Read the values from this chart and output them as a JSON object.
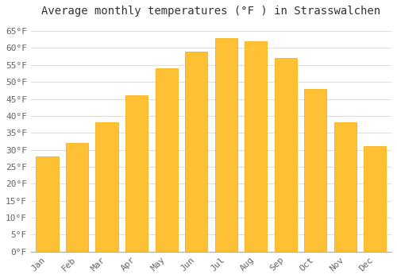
{
  "title": "Average monthly temperatures (°F ) in Strasswalchen",
  "months": [
    "Jan",
    "Feb",
    "Mar",
    "Apr",
    "May",
    "Jun",
    "Jul",
    "Aug",
    "Sep",
    "Oct",
    "Nov",
    "Dec"
  ],
  "values": [
    28.0,
    32.0,
    38.0,
    46.0,
    54.0,
    59.0,
    63.0,
    62.0,
    57.0,
    48.0,
    38.0,
    31.0
  ],
  "bar_color_face": "#FFC033",
  "bar_color_edge": "#F5A800",
  "background_color": "#FFFFFF",
  "grid_color": "#DDDDDD",
  "ylim": [
    0,
    68
  ],
  "yticks": [
    0,
    5,
    10,
    15,
    20,
    25,
    30,
    35,
    40,
    45,
    50,
    55,
    60,
    65
  ],
  "title_fontsize": 10,
  "tick_fontsize": 8,
  "tick_font": "monospace"
}
